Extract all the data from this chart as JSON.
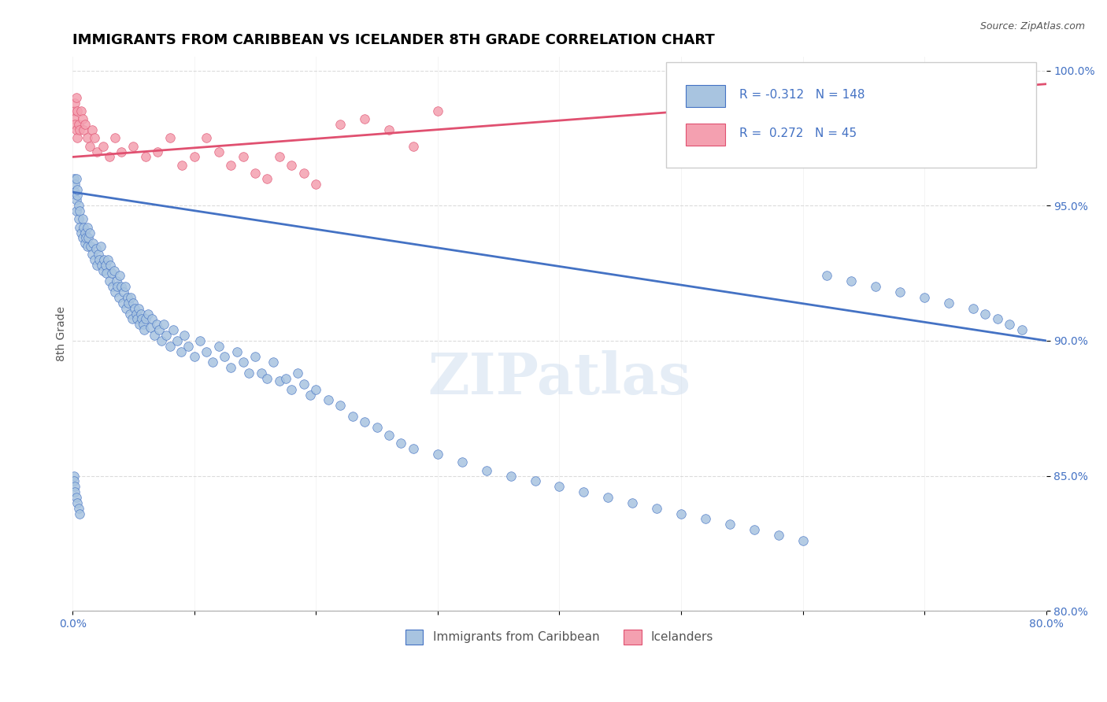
{
  "title": "IMMIGRANTS FROM CARIBBEAN VS ICELANDER 8TH GRADE CORRELATION CHART",
  "source_text": "Source: ZipAtlas.com",
  "xlabel": "",
  "ylabel": "8th Grade",
  "xlim": [
    0.0,
    0.8
  ],
  "ylim": [
    0.8,
    1.005
  ],
  "xticks": [
    0.0,
    0.1,
    0.2,
    0.3,
    0.4,
    0.5,
    0.6,
    0.7,
    0.8
  ],
  "xticklabels": [
    "0.0%",
    "",
    "",
    "",
    "",
    "",
    "",
    "",
    "80.0%"
  ],
  "yticks": [
    0.8,
    0.85,
    0.9,
    0.95,
    1.0
  ],
  "yticklabels": [
    "80.0%",
    "85.0%",
    "90.0%",
    "95.0%",
    "100.0%"
  ],
  "blue_R": -0.312,
  "blue_N": 148,
  "pink_R": 0.272,
  "pink_N": 45,
  "blue_color": "#a8c4e0",
  "pink_color": "#f4a0b0",
  "blue_line_color": "#4472c4",
  "pink_line_color": "#e05070",
  "blue_label": "Immigrants from Caribbean",
  "pink_label": "Icelanders",
  "watermark": "ZIPatlas",
  "title_fontsize": 13,
  "axis_label_fontsize": 10,
  "tick_fontsize": 10,
  "legend_fontsize": 11,
  "blue_scatter_x": [
    0.001,
    0.002,
    0.002,
    0.003,
    0.003,
    0.003,
    0.004,
    0.004,
    0.005,
    0.005,
    0.006,
    0.006,
    0.007,
    0.008,
    0.008,
    0.009,
    0.01,
    0.01,
    0.011,
    0.012,
    0.012,
    0.013,
    0.014,
    0.015,
    0.016,
    0.017,
    0.018,
    0.019,
    0.02,
    0.021,
    0.022,
    0.023,
    0.024,
    0.025,
    0.026,
    0.027,
    0.028,
    0.029,
    0.03,
    0.031,
    0.032,
    0.033,
    0.034,
    0.035,
    0.036,
    0.037,
    0.038,
    0.039,
    0.04,
    0.041,
    0.042,
    0.043,
    0.044,
    0.045,
    0.046,
    0.047,
    0.048,
    0.049,
    0.05,
    0.051,
    0.052,
    0.053,
    0.054,
    0.055,
    0.056,
    0.057,
    0.058,
    0.059,
    0.06,
    0.062,
    0.064,
    0.065,
    0.067,
    0.069,
    0.071,
    0.073,
    0.075,
    0.077,
    0.08,
    0.083,
    0.086,
    0.089,
    0.092,
    0.095,
    0.1,
    0.105,
    0.11,
    0.115,
    0.12,
    0.125,
    0.13,
    0.135,
    0.14,
    0.145,
    0.15,
    0.155,
    0.16,
    0.165,
    0.17,
    0.175,
    0.18,
    0.185,
    0.19,
    0.195,
    0.2,
    0.21,
    0.22,
    0.23,
    0.24,
    0.25,
    0.26,
    0.27,
    0.28,
    0.3,
    0.32,
    0.34,
    0.36,
    0.38,
    0.4,
    0.42,
    0.44,
    0.46,
    0.48,
    0.5,
    0.52,
    0.54,
    0.56,
    0.58,
    0.6,
    0.62,
    0.64,
    0.66,
    0.68,
    0.7,
    0.72,
    0.74,
    0.75,
    0.76,
    0.77,
    0.78,
    0.001,
    0.001,
    0.002,
    0.002,
    0.003,
    0.004,
    0.005,
    0.006
  ],
  "blue_scatter_y": [
    0.96,
    0.958,
    0.955,
    0.952,
    0.96,
    0.948,
    0.954,
    0.956,
    0.95,
    0.945,
    0.942,
    0.948,
    0.94,
    0.945,
    0.938,
    0.942,
    0.936,
    0.94,
    0.938,
    0.942,
    0.935,
    0.938,
    0.94,
    0.935,
    0.932,
    0.936,
    0.93,
    0.934,
    0.928,
    0.932,
    0.93,
    0.935,
    0.928,
    0.926,
    0.93,
    0.928,
    0.925,
    0.93,
    0.922,
    0.928,
    0.925,
    0.92,
    0.926,
    0.918,
    0.922,
    0.92,
    0.916,
    0.924,
    0.92,
    0.914,
    0.918,
    0.92,
    0.912,
    0.916,
    0.914,
    0.91,
    0.916,
    0.908,
    0.914,
    0.912,
    0.91,
    0.908,
    0.912,
    0.906,
    0.91,
    0.908,
    0.906,
    0.904,
    0.908,
    0.91,
    0.905,
    0.908,
    0.902,
    0.906,
    0.904,
    0.9,
    0.906,
    0.902,
    0.898,
    0.904,
    0.9,
    0.896,
    0.902,
    0.898,
    0.894,
    0.9,
    0.896,
    0.892,
    0.898,
    0.894,
    0.89,
    0.896,
    0.892,
    0.888,
    0.894,
    0.888,
    0.886,
    0.892,
    0.885,
    0.886,
    0.882,
    0.888,
    0.884,
    0.88,
    0.882,
    0.878,
    0.876,
    0.872,
    0.87,
    0.868,
    0.865,
    0.862,
    0.86,
    0.858,
    0.855,
    0.852,
    0.85,
    0.848,
    0.846,
    0.844,
    0.842,
    0.84,
    0.838,
    0.836,
    0.834,
    0.832,
    0.83,
    0.828,
    0.826,
    0.924,
    0.922,
    0.92,
    0.918,
    0.916,
    0.914,
    0.912,
    0.91,
    0.908,
    0.906,
    0.904,
    0.85,
    0.848,
    0.846,
    0.844,
    0.842,
    0.84,
    0.838,
    0.836
  ],
  "pink_scatter_x": [
    0.001,
    0.001,
    0.002,
    0.002,
    0.003,
    0.003,
    0.004,
    0.004,
    0.005,
    0.006,
    0.007,
    0.008,
    0.009,
    0.01,
    0.012,
    0.014,
    0.016,
    0.018,
    0.02,
    0.025,
    0.03,
    0.035,
    0.04,
    0.05,
    0.06,
    0.07,
    0.08,
    0.09,
    0.1,
    0.11,
    0.12,
    0.13,
    0.14,
    0.15,
    0.16,
    0.17,
    0.18,
    0.19,
    0.2,
    0.22,
    0.24,
    0.26,
    0.28,
    0.3,
    0.75
  ],
  "pink_scatter_y": [
    0.985,
    0.982,
    0.988,
    0.98,
    0.978,
    0.99,
    0.975,
    0.985,
    0.98,
    0.978,
    0.985,
    0.982,
    0.978,
    0.98,
    0.975,
    0.972,
    0.978,
    0.975,
    0.97,
    0.972,
    0.968,
    0.975,
    0.97,
    0.972,
    0.968,
    0.97,
    0.975,
    0.965,
    0.968,
    0.975,
    0.97,
    0.965,
    0.968,
    0.962,
    0.96,
    0.968,
    0.965,
    0.962,
    0.958,
    0.98,
    0.982,
    0.978,
    0.972,
    0.985,
    0.99
  ],
  "blue_trend_x": [
    0.0,
    0.8
  ],
  "blue_trend_y": [
    0.955,
    0.9
  ],
  "pink_trend_x": [
    0.0,
    0.8
  ],
  "pink_trend_y": [
    0.968,
    0.995
  ]
}
